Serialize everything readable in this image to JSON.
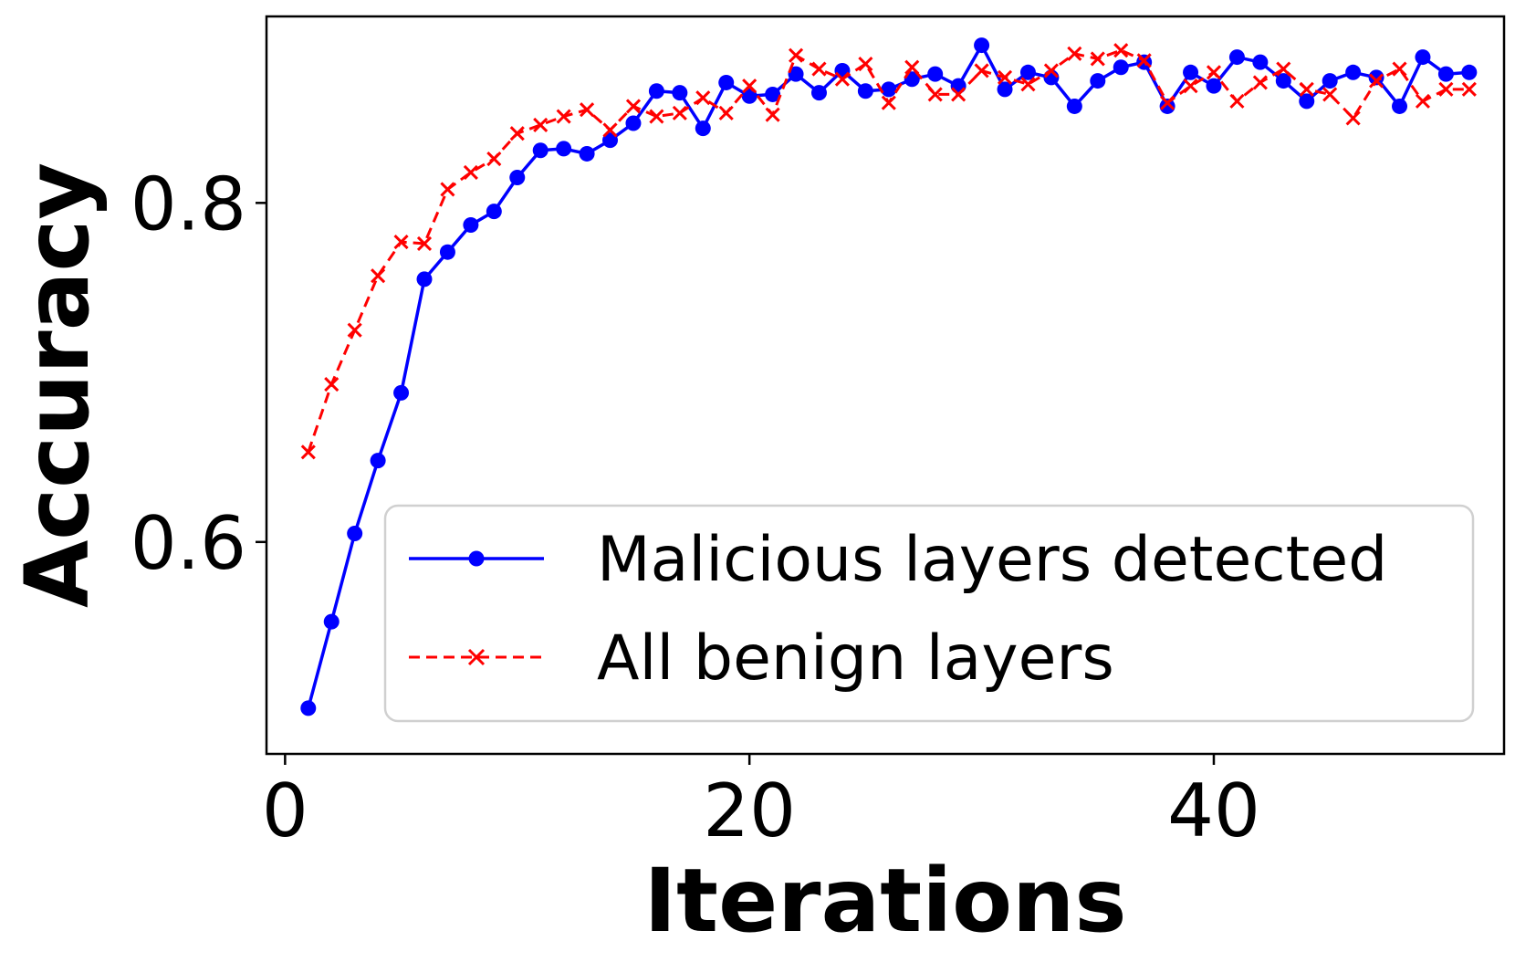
{
  "chart_data": {
    "type": "line",
    "title": "",
    "xlabel": "Iterations",
    "ylabel": "Accuracy",
    "xlim": [
      -0.8,
      52.5
    ],
    "ylim": [
      0.475,
      0.91
    ],
    "xticks": [
      0,
      20,
      40
    ],
    "yticks": [
      0.6,
      0.8
    ],
    "xtick_labels": [
      "0",
      "20",
      "40"
    ],
    "ytick_labels": [
      "0.6",
      "0.8"
    ],
    "grid": false,
    "legend_position": "lower-right",
    "x": [
      1,
      2,
      3,
      4,
      5,
      6,
      7,
      8,
      9,
      10,
      11,
      12,
      13,
      14,
      15,
      16,
      17,
      18,
      19,
      20,
      21,
      22,
      23,
      24,
      25,
      26,
      27,
      28,
      29,
      30,
      31,
      32,
      33,
      34,
      35,
      36,
      37,
      38,
      39,
      40,
      41,
      42,
      43,
      44,
      45,
      46,
      47,
      48,
      49,
      50,
      51
    ],
    "series": [
      {
        "name": "Malicious layers detected",
        "color": "#0000ff",
        "line_style": "solid",
        "marker": "circle",
        "values": [
          0.502,
          0.553,
          0.605,
          0.648,
          0.688,
          0.755,
          0.771,
          0.787,
          0.795,
          0.815,
          0.831,
          0.832,
          0.829,
          0.837,
          0.847,
          0.866,
          0.865,
          0.844,
          0.871,
          0.863,
          0.864,
          0.876,
          0.865,
          0.878,
          0.866,
          0.867,
          0.873,
          0.876,
          0.869,
          0.893,
          0.867,
          0.877,
          0.874,
          0.857,
          0.872,
          0.88,
          0.883,
          0.857,
          0.877,
          0.869,
          0.886,
          0.883,
          0.872,
          0.86,
          0.872,
          0.877,
          0.874,
          0.857,
          0.886,
          0.876,
          0.877
        ]
      },
      {
        "name": "All benign layers",
        "color": "#ff0000",
        "line_style": "dashed",
        "marker": "x",
        "values": [
          0.653,
          0.693,
          0.725,
          0.757,
          0.777,
          0.776,
          0.808,
          0.818,
          0.826,
          0.841,
          0.846,
          0.851,
          0.855,
          0.843,
          0.857,
          0.851,
          0.853,
          0.862,
          0.853,
          0.869,
          0.852,
          0.887,
          0.879,
          0.873,
          0.882,
          0.859,
          0.88,
          0.864,
          0.864,
          0.878,
          0.874,
          0.87,
          0.878,
          0.888,
          0.885,
          0.89,
          0.884,
          0.859,
          0.869,
          0.877,
          0.86,
          0.871,
          0.879,
          0.867,
          0.864,
          0.85,
          0.872,
          0.879,
          0.86,
          0.867,
          0.867
        ]
      }
    ]
  }
}
